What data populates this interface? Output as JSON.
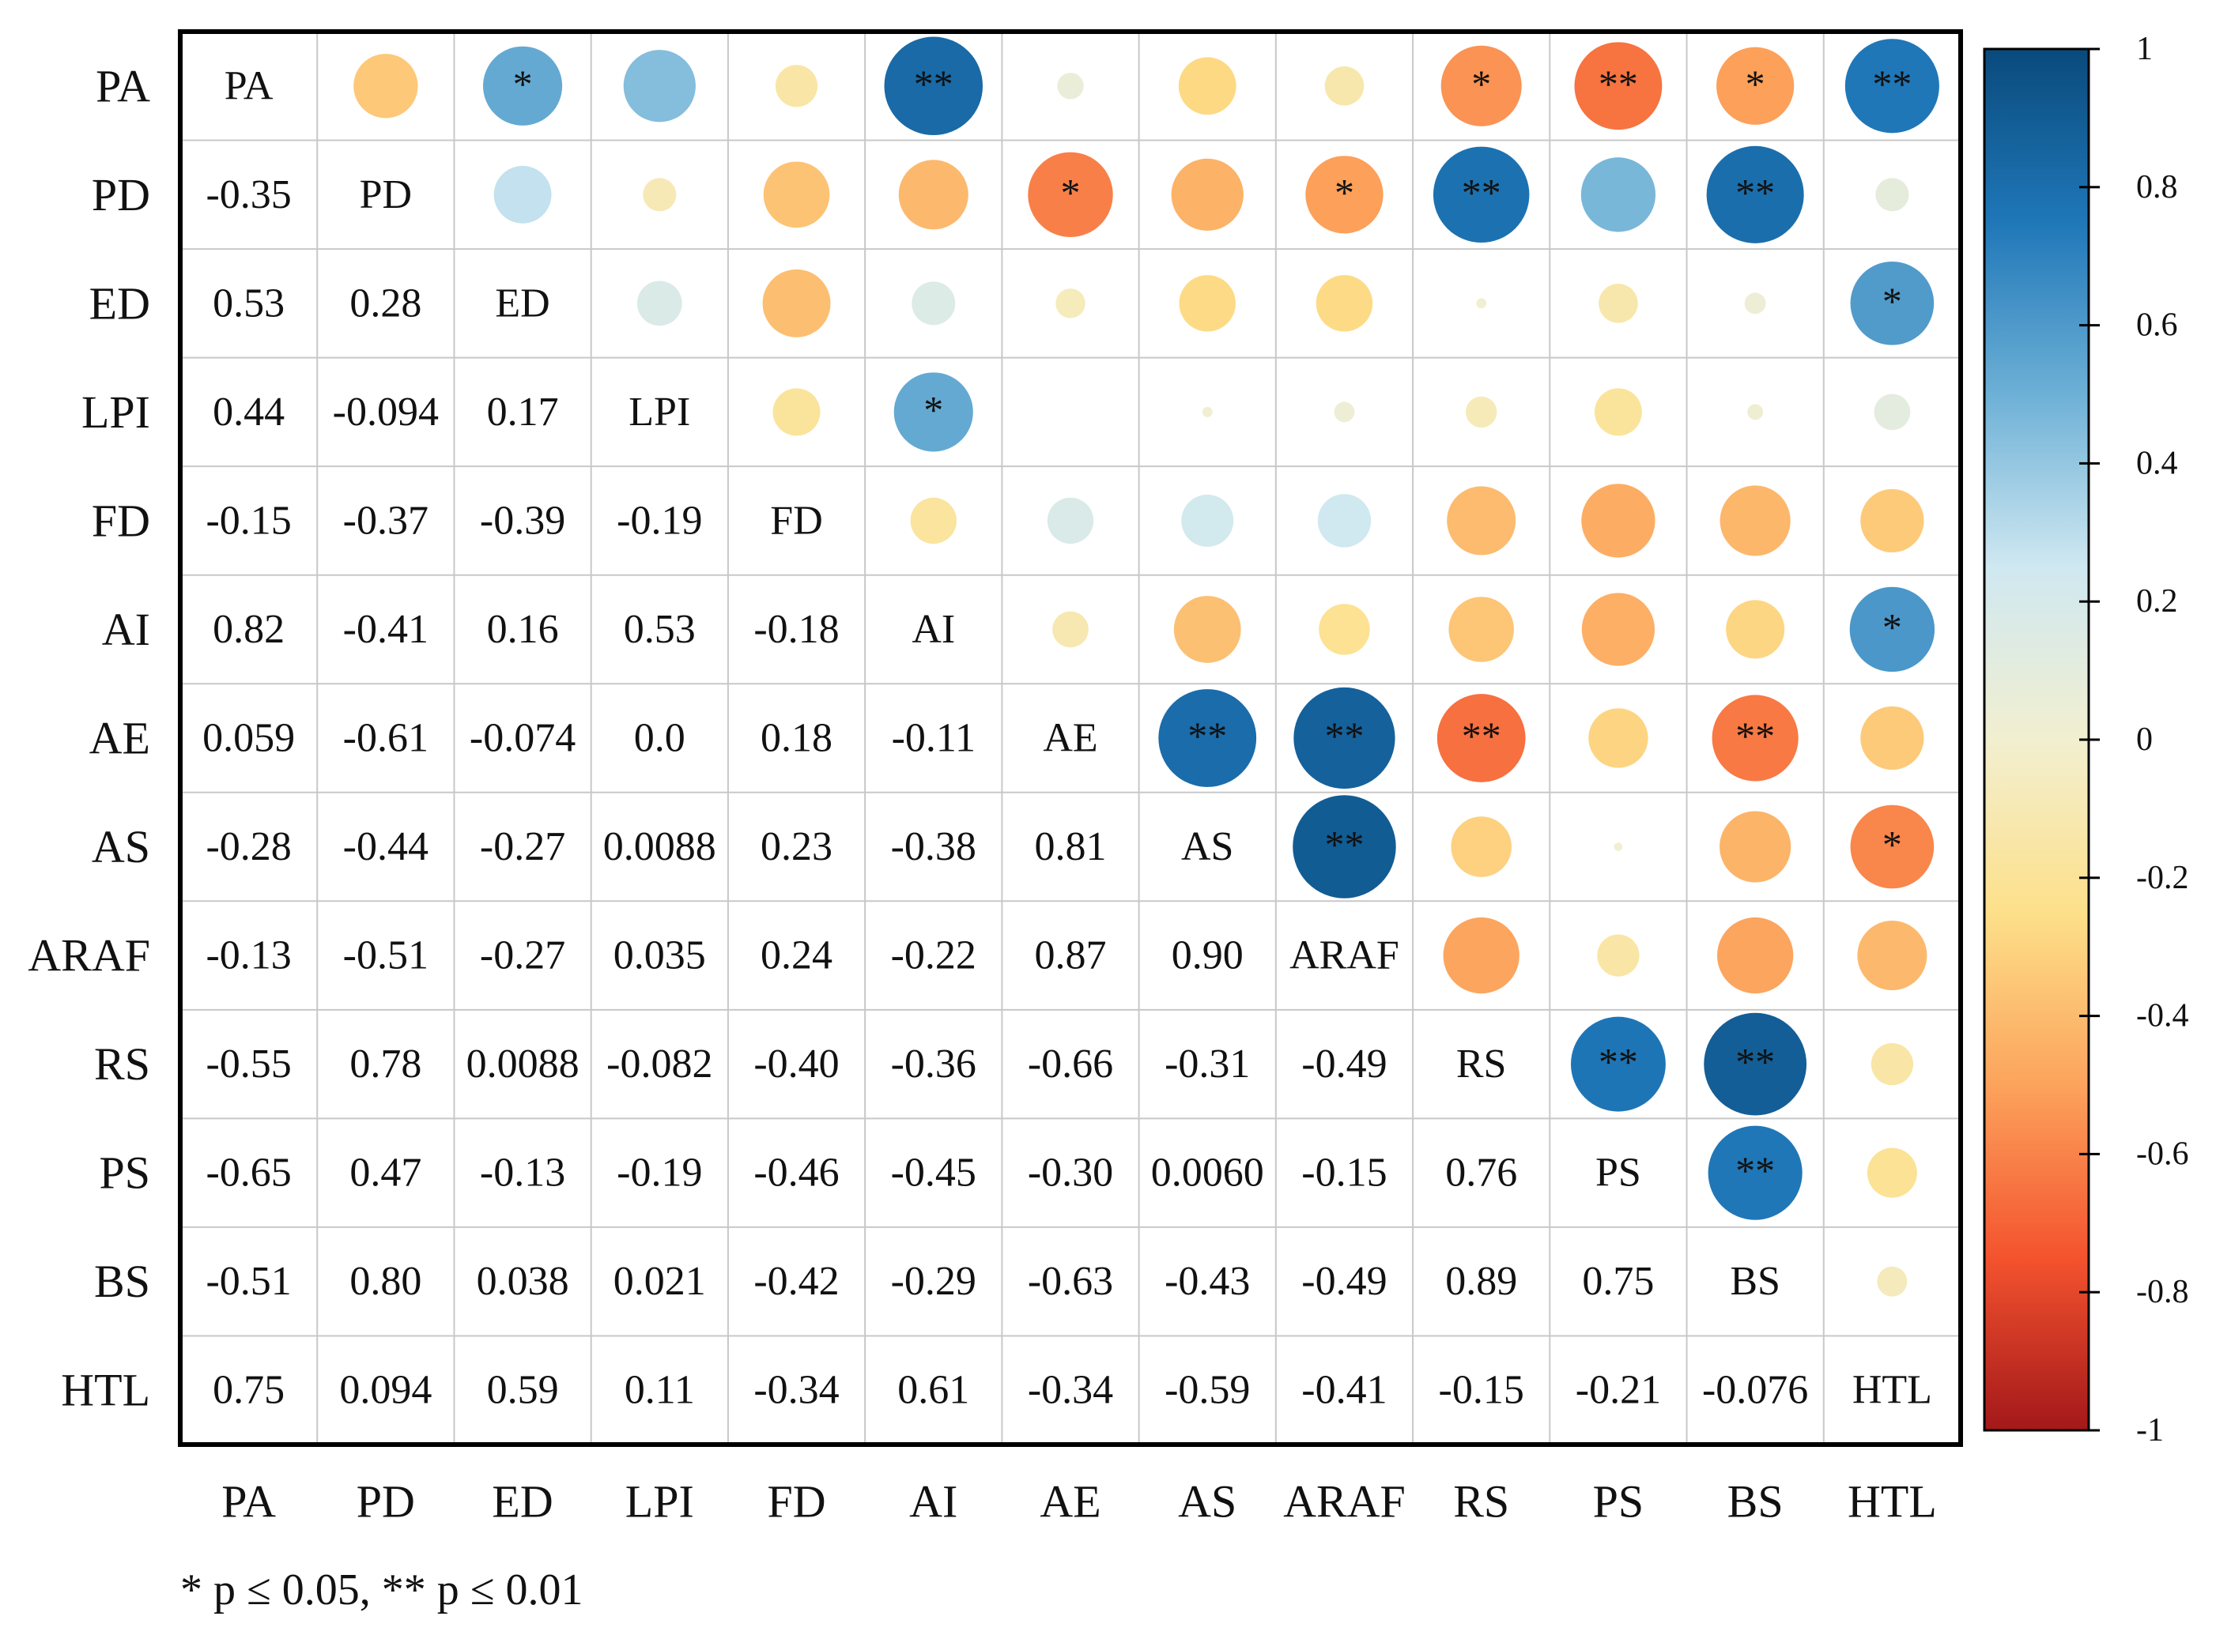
{
  "chart_data": {
    "type": "heatmap",
    "title": "",
    "variables": [
      "PA",
      "PD",
      "ED",
      "LPI",
      "FD",
      "AI",
      "AE",
      "AS",
      "ARAF",
      "RS",
      "PS",
      "BS",
      "HTL"
    ],
    "lower_triangle_labels": [
      [
        "PA",
        "",
        "",
        "",
        "",
        "",
        "",
        "",
        "",
        "",
        "",
        "",
        ""
      ],
      [
        "-0.35",
        "PD",
        "",
        "",
        "",
        "",
        "",
        "",
        "",
        "",
        "",
        "",
        ""
      ],
      [
        "0.53",
        "0.28",
        "ED",
        "",
        "",
        "",
        "",
        "",
        "",
        "",
        "",
        "",
        ""
      ],
      [
        "0.44",
        "-0.094",
        "0.17",
        "LPI",
        "",
        "",
        "",
        "",
        "",
        "",
        "",
        "",
        ""
      ],
      [
        "-0.15",
        "-0.37",
        "-0.39",
        "-0.19",
        "FD",
        "",
        "",
        "",
        "",
        "",
        "",
        "",
        ""
      ],
      [
        "0.82",
        "-0.41",
        "0.16",
        "0.53",
        "-0.18",
        "AI",
        "",
        "",
        "",
        "",
        "",
        "",
        ""
      ],
      [
        "0.059",
        "-0.61",
        "-0.074",
        "0.0",
        "0.18",
        "-0.11",
        "AE",
        "",
        "",
        "",
        "",
        "",
        ""
      ],
      [
        "-0.28",
        "-0.44",
        "-0.27",
        "0.0088",
        "0.23",
        "-0.38",
        "0.81",
        "AS",
        "",
        "",
        "",
        "",
        ""
      ],
      [
        "-0.13",
        "-0.51",
        "-0.27",
        "0.035",
        "0.24",
        "-0.22",
        "0.87",
        "0.90",
        "ARAF",
        "",
        "",
        "",
        ""
      ],
      [
        "-0.55",
        "0.78",
        "0.0088",
        "-0.082",
        "-0.40",
        "-0.36",
        "-0.66",
        "-0.31",
        "-0.49",
        "RS",
        "",
        "",
        ""
      ],
      [
        "-0.65",
        "0.47",
        "-0.13",
        "-0.19",
        "-0.46",
        "-0.45",
        "-0.30",
        "0.0060",
        "-0.15",
        "0.76",
        "PS",
        "",
        ""
      ],
      [
        "-0.51",
        "0.80",
        "0.038",
        "0.021",
        "-0.42",
        "-0.29",
        "-0.63",
        "-0.43",
        "-0.49",
        "0.89",
        "0.75",
        "BS",
        ""
      ],
      [
        "0.75",
        "0.094",
        "0.59",
        "0.11",
        "-0.34",
        "0.61",
        "-0.34",
        "-0.59",
        "-0.41",
        "-0.15",
        "-0.21",
        "-0.076",
        "HTL"
      ]
    ],
    "significance": [
      [
        "",
        "",
        "*",
        "",
        "",
        "**",
        "",
        "",
        "",
        "*",
        "**",
        "*",
        "**"
      ],
      [
        "",
        "",
        "",
        "",
        "",
        "",
        "*",
        "",
        "*",
        "**",
        "",
        "**",
        ""
      ],
      [
        "",
        "",
        "",
        "",
        "",
        "",
        "",
        "",
        "",
        "",
        "",
        "",
        "*"
      ],
      [
        "",
        "",
        "",
        "",
        "",
        "*",
        "",
        "",
        "",
        "",
        "",
        "",
        ""
      ],
      [
        "",
        "",
        "",
        "",
        "",
        "",
        "",
        "",
        "",
        "",
        "",
        "",
        ""
      ],
      [
        "",
        "",
        "",
        "",
        "",
        "",
        "",
        "",
        "",
        "",
        "",
        "",
        "*"
      ],
      [
        "",
        "",
        "",
        "",
        "",
        "",
        "",
        "**",
        "**",
        "**",
        "",
        "**",
        ""
      ],
      [
        "",
        "",
        "",
        "",
        "",
        "",
        "",
        "",
        "**",
        "",
        "",
        "",
        "*"
      ],
      [
        "",
        "",
        "",
        "",
        "",
        "",
        "",
        "",
        "",
        "",
        "",
        "",
        ""
      ],
      [
        "",
        "",
        "",
        "",
        "",
        "",
        "",
        "",
        "",
        "",
        "**",
        "**",
        ""
      ],
      [
        "",
        "",
        "",
        "",
        "",
        "",
        "",
        "",
        "",
        "",
        "",
        "**",
        ""
      ],
      [
        "",
        "",
        "",
        "",
        "",
        "",
        "",
        "",
        "",
        "",
        "",
        "",
        ""
      ],
      [
        "",
        "",
        "",
        "",
        "",
        "",
        "",
        "",
        "",
        "",
        "",
        "",
        ""
      ]
    ],
    "colorbar": {
      "range": [
        -1,
        1
      ],
      "ticks": [
        "1",
        "0.8",
        "0.6",
        "0.4",
        "0.2",
        "0",
        "-0.2",
        "-0.4",
        "-0.6",
        "-0.8",
        "-1"
      ],
      "tick_values": [
        1,
        0.8,
        0.6,
        0.4,
        0.2,
        0,
        -0.2,
        -0.4,
        -0.6,
        -0.8,
        -1
      ],
      "colors": [
        "#0a4a7c",
        "#1f77b8",
        "#6db0d6",
        "#cfe8f1",
        "#f2efd0",
        "#fde08a",
        "#fca35c",
        "#f4532e",
        "#a3181a"
      ]
    },
    "legend_position": "right",
    "grid": true
  },
  "footnote": "* p ≤ 0.05,  ** p ≤ 0.01"
}
